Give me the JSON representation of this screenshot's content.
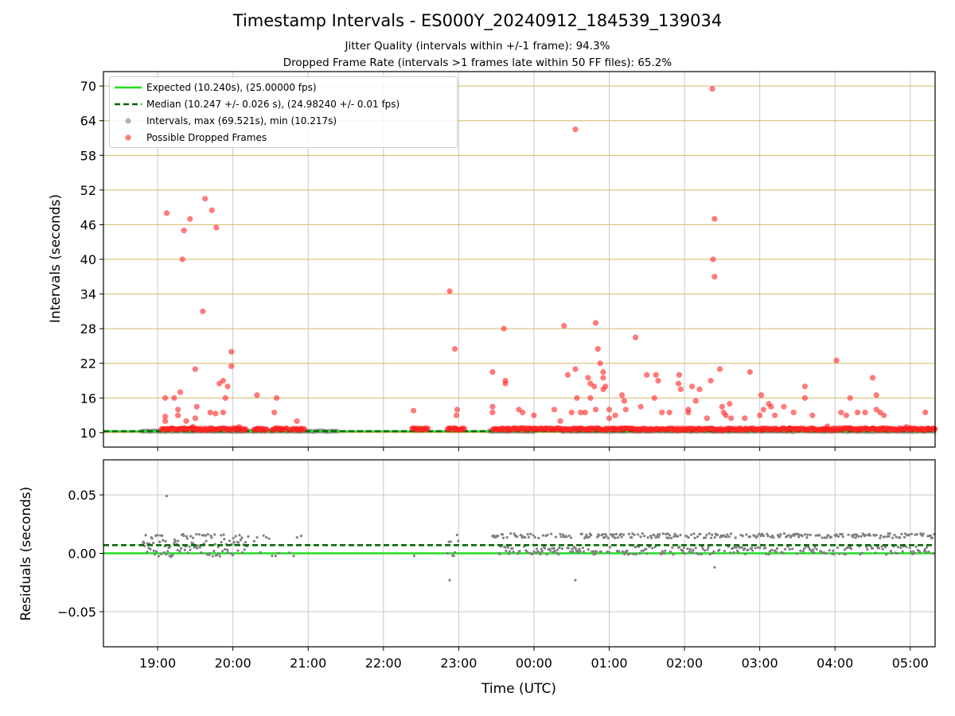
{
  "title": "Timestamp Intervals - ES000Y_20240912_184539_139034",
  "subtitle_jitter": "Jitter Quality (intervals within +/-1 frame): 94.3%",
  "subtitle_dropped": "Dropped Frame Rate (intervals >1 frames late within 50 FF files): 65.2%",
  "colors": {
    "expected": "#22dd22",
    "median": "#006400",
    "intervals": "#808080",
    "dropped": "#ff2222",
    "hgrid_top": "#d4b86a",
    "grid": "#b0b0b0"
  },
  "legend": {
    "expected": "Expected (10.240s), (25.00000 fps)",
    "median": "Median (10.247 +/- 0.026 s), (24.98240 +/- 0.01 fps)",
    "intervals": "Intervals, max (69.521s), min (10.217s)",
    "dropped": "Possible Dropped Frames"
  },
  "chart_data": [
    {
      "type": "scatter",
      "xlabel": "",
      "ylabel": "Intervals (seconds)",
      "x_unit": "hours since 18:00 UTC",
      "xlim": [
        0.28,
        11.33
      ],
      "ylim": [
        7.5,
        72.5
      ],
      "yticks": [
        10,
        16,
        22,
        28,
        34,
        40,
        46,
        52,
        58,
        64,
        70
      ],
      "grid": true,
      "legend_position": "top-left",
      "expected": 10.24,
      "median": 10.247,
      "baseline_segments": [
        [
          0.79,
          3.4
        ],
        [
          5.4,
          6.0
        ],
        [
          6.38,
          11.33
        ]
      ],
      "intervals_max": 69.521,
      "intervals_min": 10.217,
      "dropped_points": [
        [
          1.12,
          48
        ],
        [
          1.1,
          12.8
        ],
        [
          1.1,
          12
        ],
        [
          1.1,
          16
        ],
        [
          1.22,
          16
        ],
        [
          1.27,
          13
        ],
        [
          1.27,
          14
        ],
        [
          1.3,
          17
        ],
        [
          1.35,
          45
        ],
        [
          1.33,
          40
        ],
        [
          1.43,
          47
        ],
        [
          1.38,
          12
        ],
        [
          1.47,
          11
        ],
        [
          1.5,
          12.5
        ],
        [
          1.52,
          14.5
        ],
        [
          1.5,
          21
        ],
        [
          1.6,
          31
        ],
        [
          1.63,
          50.5
        ],
        [
          1.72,
          48.5
        ],
        [
          1.7,
          13.5
        ],
        [
          1.78,
          45.5
        ],
        [
          1.77,
          13.3
        ],
        [
          1.82,
          18.5
        ],
        [
          1.87,
          19
        ],
        [
          1.9,
          16
        ],
        [
          1.93,
          18
        ],
        [
          1.87,
          13.5
        ],
        [
          1.98,
          24
        ],
        [
          1.98,
          21.5
        ],
        [
          2.08,
          11
        ],
        [
          2.32,
          16.5
        ],
        [
          2.55,
          13.5
        ],
        [
          2.58,
          16
        ],
        [
          2.85,
          12
        ],
        [
          2.75,
          10.5
        ],
        [
          4.4,
          13.8
        ],
        [
          4.88,
          34.5
        ],
        [
          4.95,
          24.5
        ],
        [
          4.97,
          13
        ],
        [
          4.98,
          14
        ],
        [
          5.45,
          20.5
        ],
        [
          5.45,
          14.5
        ],
        [
          5.45,
          13.5
        ],
        [
          5.6,
          28
        ],
        [
          5.62,
          19
        ],
        [
          5.62,
          18.5
        ],
        [
          5.8,
          14
        ],
        [
          5.85,
          13.5
        ],
        [
          6.0,
          13
        ],
        [
          6.27,
          14
        ],
        [
          6.35,
          12
        ],
        [
          6.4,
          28.5
        ],
        [
          6.45,
          20
        ],
        [
          6.5,
          13.5
        ],
        [
          6.55,
          21
        ],
        [
          6.57,
          16
        ],
        [
          6.55,
          62.5
        ],
        [
          6.62,
          13.5
        ],
        [
          6.68,
          13.5
        ],
        [
          6.72,
          19.5
        ],
        [
          6.75,
          18.5
        ],
        [
          6.75,
          16
        ],
        [
          6.8,
          18
        ],
        [
          6.82,
          29
        ],
        [
          6.82,
          14
        ],
        [
          6.85,
          24.5
        ],
        [
          6.88,
          22
        ],
        [
          6.92,
          20.5
        ],
        [
          6.92,
          19.5
        ],
        [
          6.92,
          17.5
        ],
        [
          6.95,
          18
        ],
        [
          7.0,
          14
        ],
        [
          7.0,
          12.5
        ],
        [
          7.08,
          13
        ],
        [
          7.17,
          16.5
        ],
        [
          7.2,
          15.5
        ],
        [
          7.22,
          14
        ],
        [
          7.35,
          26.5
        ],
        [
          7.42,
          14.5
        ],
        [
          7.5,
          20
        ],
        [
          7.6,
          16
        ],
        [
          7.62,
          20
        ],
        [
          7.65,
          19
        ],
        [
          7.7,
          13.5
        ],
        [
          7.8,
          13.5
        ],
        [
          7.92,
          18.5
        ],
        [
          7.93,
          20
        ],
        [
          7.95,
          17.5
        ],
        [
          8.05,
          14
        ],
        [
          8.05,
          13.5
        ],
        [
          8.1,
          18
        ],
        [
          8.15,
          15.5
        ],
        [
          8.2,
          17.5
        ],
        [
          8.3,
          12.5
        ],
        [
          8.35,
          19
        ],
        [
          8.37,
          69.5
        ],
        [
          8.38,
          40
        ],
        [
          8.4,
          47
        ],
        [
          8.4,
          37
        ],
        [
          8.47,
          21
        ],
        [
          8.5,
          14.5
        ],
        [
          8.52,
          13.5
        ],
        [
          8.55,
          13
        ],
        [
          8.6,
          15
        ],
        [
          8.62,
          12.5
        ],
        [
          8.8,
          12.5
        ],
        [
          8.87,
          20.5
        ],
        [
          9.0,
          13
        ],
        [
          9.02,
          16.5
        ],
        [
          9.05,
          14
        ],
        [
          9.12,
          15
        ],
        [
          9.15,
          14.5
        ],
        [
          9.2,
          13
        ],
        [
          9.32,
          14.5
        ],
        [
          9.45,
          13.5
        ],
        [
          9.6,
          18
        ],
        [
          9.6,
          16
        ],
        [
          9.7,
          13
        ],
        [
          10.02,
          22.5
        ],
        [
          10.08,
          13.5
        ],
        [
          10.15,
          13
        ],
        [
          10.2,
          16
        ],
        [
          10.3,
          13.5
        ],
        [
          10.4,
          13.5
        ],
        [
          10.5,
          19.5
        ],
        [
          10.55,
          16.5
        ],
        [
          10.55,
          14
        ],
        [
          10.6,
          13.5
        ],
        [
          10.65,
          13
        ],
        [
          10.95,
          11
        ],
        [
          11.0,
          10.8
        ],
        [
          11.2,
          13.5
        ],
        [
          9.9,
          11.1
        ],
        [
          10.2,
          10.8
        ]
      ]
    },
    {
      "type": "scatter",
      "xlabel": "Time (UTC)",
      "ylabel": "Residuals (seconds)",
      "xlim": [
        0.28,
        11.33
      ],
      "ylim": [
        -0.08,
        0.08
      ],
      "yticks": [
        -0.05,
        0.0,
        0.05
      ],
      "yticklabels": [
        "−0.05",
        "0.00",
        "0.05"
      ],
      "xticks": [
        1,
        2,
        3,
        4,
        5,
        6,
        7,
        8,
        9,
        10,
        11
      ],
      "xticklabels": [
        "19:00",
        "20:00",
        "21:00",
        "22:00",
        "23:00",
        "00:00",
        "01:00",
        "02:00",
        "03:00",
        "04:00",
        "05:00"
      ],
      "grid": true,
      "expected": 0.0,
      "median": 0.007,
      "residual_outliers": [
        [
          1.12,
          0.049
        ],
        [
          4.88,
          -0.023
        ],
        [
          6.55,
          -0.023
        ],
        [
          8.4,
          -0.012
        ]
      ]
    }
  ]
}
